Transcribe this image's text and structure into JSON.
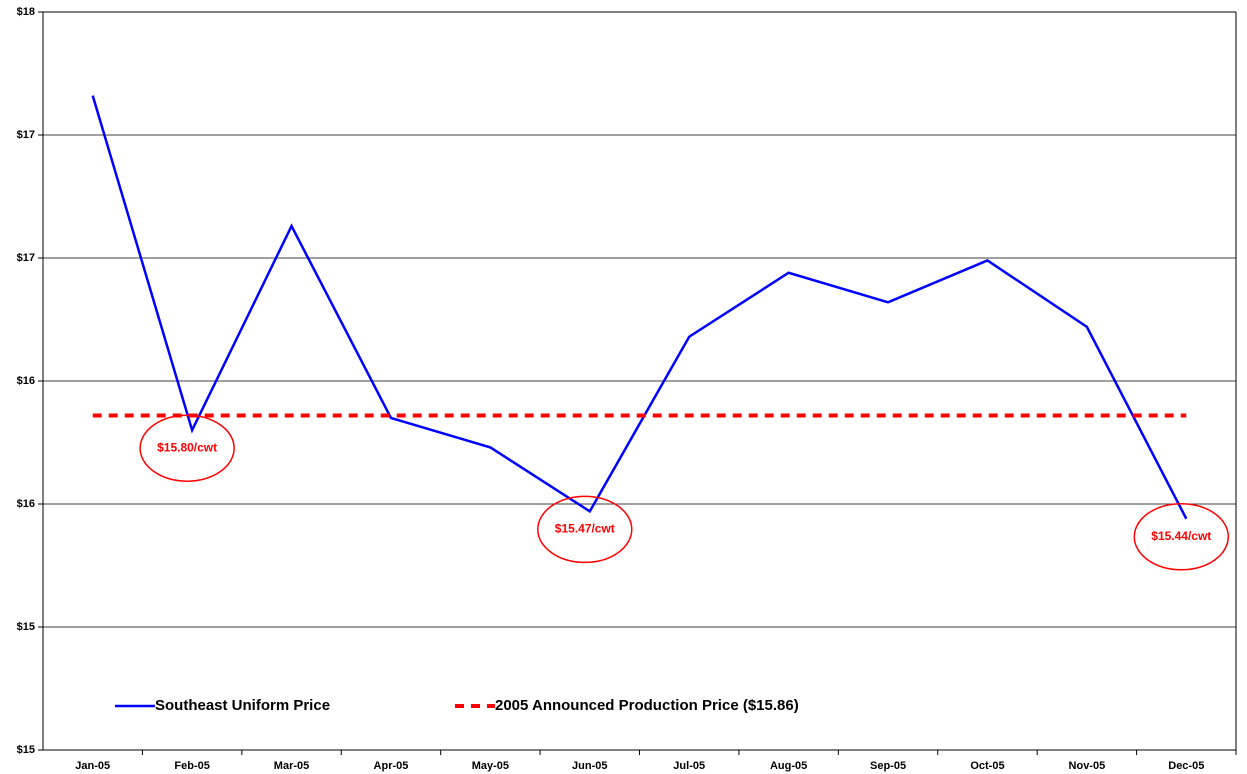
{
  "chart_data": {
    "type": "line",
    "categories": [
      "Jan-05",
      "Feb-05",
      "Mar-05",
      "Apr-05",
      "May-05",
      "Jun-05",
      "Jul-05",
      "Aug-05",
      "Sep-05",
      "Oct-05",
      "Nov-05",
      "Dec-05"
    ],
    "series": [
      {
        "name": "Southeast Uniform Price",
        "color": "#0000ff",
        "dashed": false,
        "values": [
          17.16,
          15.8,
          16.63,
          15.85,
          15.73,
          15.47,
          16.18,
          16.44,
          16.32,
          16.49,
          16.22,
          15.44
        ]
      },
      {
        "name": "2005 Announced Production Price ($15.86)",
        "color": "#ff0000",
        "dashed": true,
        "values": [
          15.86,
          15.86,
          15.86,
          15.86,
          15.86,
          15.86,
          15.86,
          15.86,
          15.86,
          15.86,
          15.86,
          15.86
        ]
      }
    ],
    "ylim": [
      14.5,
      17.5
    ],
    "yticks": [
      {
        "value": 14.5,
        "label": "$15"
      },
      {
        "value": 15,
        "label": "$15"
      },
      {
        "value": 15.5,
        "label": "$16"
      },
      {
        "value": 16,
        "label": "$16"
      },
      {
        "value": 16.5,
        "label": "$17"
      },
      {
        "value": 17,
        "label": "$17"
      },
      {
        "value": 17.5,
        "label": "$18"
      }
    ],
    "grid": true,
    "annotations": [
      "$15.80/cwt",
      "$15.47/cwt",
      "$15.44/cwt"
    ]
  }
}
